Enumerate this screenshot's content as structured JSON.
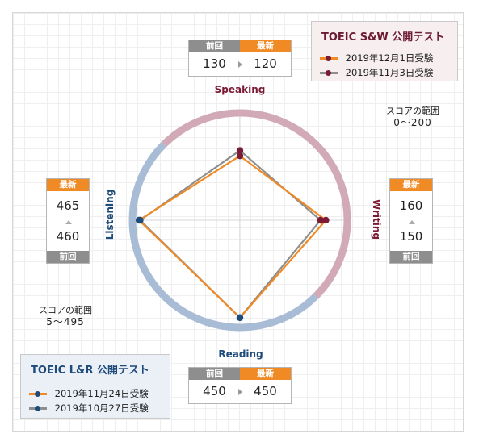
{
  "sw_legend": {
    "title": "TOEIC S&W 公開テスト",
    "latest": {
      "label": "2019年12月1日受験",
      "line_color": "#f08a24",
      "marker_color": "#7b1a35"
    },
    "previous": {
      "label": "2019年11月3日受験",
      "line_color": "#8e8e8e",
      "marker_color": "#7b1a35"
    }
  },
  "lr_legend": {
    "title": "TOEIC L&R 公開テスト",
    "latest": {
      "label": "2019年11月24日受験",
      "line_color": "#f08a24",
      "marker_color": "#1f4b7a"
    },
    "previous": {
      "label": "2019年10月27日受験",
      "line_color": "#8e8e8e",
      "marker_color": "#1f4b7a"
    }
  },
  "sw_range": {
    "label": "スコアの範囲",
    "value": "0～200"
  },
  "lr_range": {
    "label": "スコアの範囲",
    "value": "5～495"
  },
  "score_labels": {
    "latest": "最新",
    "previous": "前回"
  },
  "scores": {
    "speaking": {
      "latest": "120",
      "previous": "130"
    },
    "writing": {
      "latest": "160",
      "previous": "150"
    },
    "listening": {
      "latest": "465",
      "previous": "460"
    },
    "reading": {
      "latest": "450",
      "previous": "450"
    }
  },
  "colors": {
    "sw_ring": "#d2a9b6",
    "lr_ring": "#a9bcd6",
    "latest_line": "#f08a24",
    "previous_line": "#8e8e8e",
    "sw_axis_label": "#7b1a35",
    "lr_axis_label": "#1f4b7a"
  },
  "chart_data": {
    "type": "radar",
    "axes": [
      {
        "name": "Speaking",
        "min": 0,
        "max": 200
      },
      {
        "name": "Writing",
        "min": 0,
        "max": 200
      },
      {
        "name": "Reading",
        "min": 5,
        "max": 495
      },
      {
        "name": "Listening",
        "min": 5,
        "max": 495
      }
    ],
    "series": [
      {
        "name": "最新",
        "values": [
          120,
          160,
          450,
          465
        ]
      },
      {
        "name": "前回",
        "values": [
          130,
          150,
          450,
          460
        ]
      }
    ]
  }
}
